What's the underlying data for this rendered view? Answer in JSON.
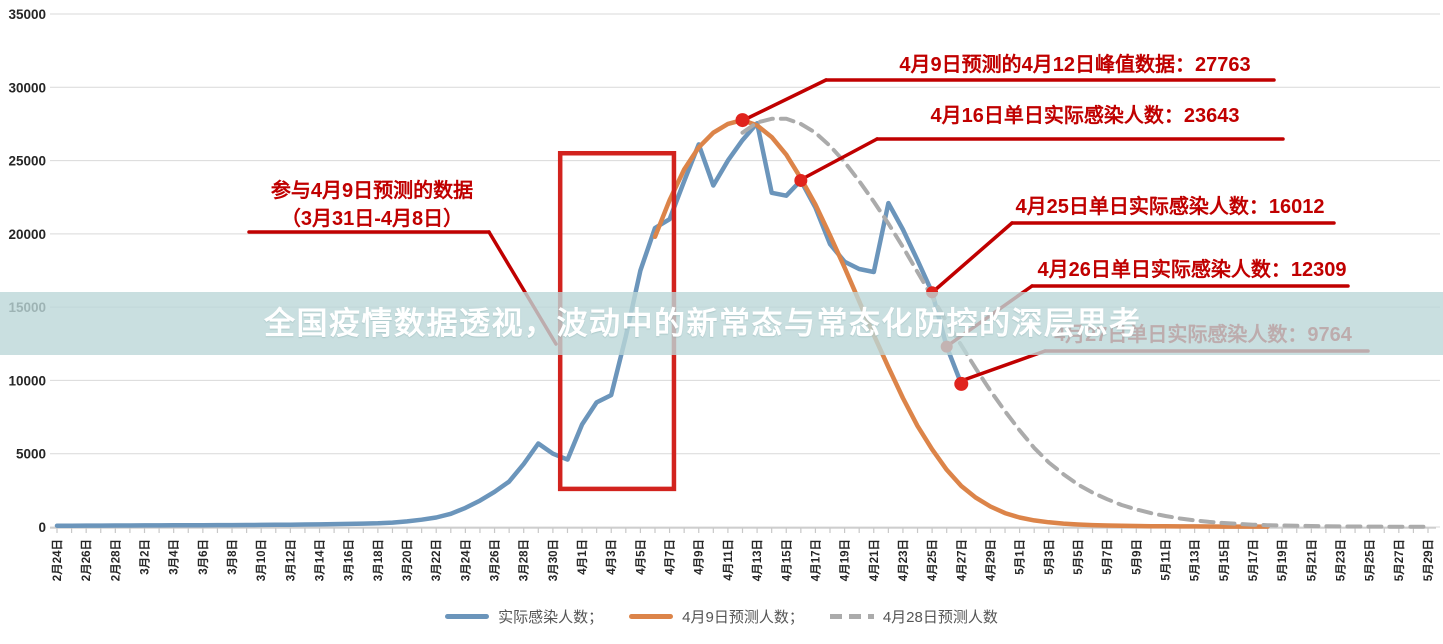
{
  "chart_data": {
    "type": "line",
    "title": "全国疫情数据透视，波动中的新常态与常态化防控的深层思考",
    "ylim": [
      0,
      35000
    ],
    "y_ticks": [
      0,
      5000,
      10000,
      15000,
      20000,
      25000,
      30000,
      35000
    ],
    "grid": "horizontal",
    "x_days_span": 94,
    "x_tick_labels": [
      "2月24日",
      "2月26日",
      "2月28日",
      "3月2日",
      "3月4日",
      "3月6日",
      "3月8日",
      "3月10日",
      "3月12日",
      "3月14日",
      "3月16日",
      "3月18日",
      "3月20日",
      "3月22日",
      "3月24日",
      "3月26日",
      "3月28日",
      "3月30日",
      "4月1日",
      "4月3日",
      "4月5日",
      "4月7日",
      "4月9日",
      "4月11日",
      "4月13日",
      "4月15日",
      "4月17日",
      "4月19日",
      "4月21日",
      "4月23日",
      "4月25日",
      "4月27日",
      "4月29日",
      "5月1日",
      "5月3日",
      "5月5日",
      "5月7日",
      "5月9日",
      "5月11日",
      "5月13日",
      "5月15日",
      "5月17日",
      "5月19日",
      "5月21日",
      "5月23日",
      "5月25日",
      "5月27日",
      "5月29日"
    ],
    "series": [
      {
        "name": "实际感染人数",
        "color": "#6b95bb",
        "style": "solid",
        "width": 4.5,
        "start_day": 0,
        "values": [
          90,
          92,
          95,
          98,
          100,
          103,
          106,
          110,
          114,
          118,
          122,
          127,
          132,
          138,
          145,
          152,
          160,
          170,
          180,
          195,
          210,
          230,
          255,
          300,
          380,
          500,
          650,
          900,
          1300,
          1800,
          2400,
          3100,
          4300,
          5700,
          5000,
          4600,
          7000,
          8500,
          9000,
          13000,
          17500,
          20400,
          21000,
          23600,
          26100,
          23300,
          25000,
          26400,
          27550,
          22800,
          22600,
          23643,
          21800,
          19300,
          18100,
          17600,
          17400,
          22100,
          20300,
          18200,
          16012,
          12309,
          9764
        ]
      },
      {
        "name": "4月9日预测人数",
        "color": "#dc8449",
        "style": "solid",
        "width": 4.5,
        "start_day": 41,
        "values": [
          19800,
          22300,
          24400,
          25900,
          26900,
          27500,
          27763,
          27400,
          26600,
          25400,
          23800,
          22000,
          19900,
          17700,
          15400,
          13100,
          10900,
          8800,
          6900,
          5300,
          3900,
          2800,
          2000,
          1400,
          950,
          650,
          450,
          320,
          230,
          170,
          130,
          100,
          80,
          65,
          55,
          48,
          42,
          38,
          34,
          30,
          28,
          26,
          25
        ]
      },
      {
        "name": "4月28日预测人数",
        "color": "#ababab",
        "style": "dashed",
        "width": 4,
        "start_day": 47,
        "values": [
          26900,
          27600,
          27850,
          27850,
          27500,
          26900,
          26000,
          24900,
          23600,
          22200,
          20700,
          19100,
          17400,
          15700,
          14000,
          12400,
          10800,
          9300,
          7900,
          6600,
          5400,
          4400,
          3600,
          2900,
          2350,
          1900,
          1500,
          1200,
          950,
          750,
          580,
          450,
          350,
          270,
          210,
          160,
          125,
          100,
          80,
          65,
          50,
          40,
          33,
          27,
          22,
          18,
          15,
          12
        ]
      }
    ],
    "marked_points": [
      {
        "day": 47,
        "value": 27763,
        "r": 7
      },
      {
        "day": 51,
        "value": 23643,
        "r": 6.5
      },
      {
        "day": 60,
        "value": 16012,
        "r": 6
      },
      {
        "day": 61,
        "value": 12309,
        "r": 6
      },
      {
        "day": 62,
        "value": 9764,
        "r": 7
      }
    ],
    "marker_color": "#e0241d",
    "highlight_box": {
      "x_day_range": [
        34.5,
        42.3
      ],
      "y_value_range": [
        2600,
        25500
      ],
      "color": "#d2231e"
    },
    "annotations": {
      "input_window": {
        "line1": "参与4月9日预测的数据",
        "line2": "（3月31日-4月8日）"
      },
      "peak_prediction": {
        "text": "4月9日预测的4月12日峰值数据：27763"
      },
      "apr16_actual": {
        "text": "4月16日单日实际感染人数：23643"
      },
      "apr25_actual": {
        "text": "4月25日单日实际感染人数：16012"
      },
      "apr26_actual": {
        "text": "4月26日单日实际感染人数：12309"
      },
      "apr27_actual": {
        "text": "4月27日单日实际感染人数：9764"
      }
    },
    "legend_position": "bottom-center"
  },
  "legend": {
    "items": [
      "实际感染人数；",
      "4月9日预测人数；",
      "4月28日预测人数"
    ]
  }
}
